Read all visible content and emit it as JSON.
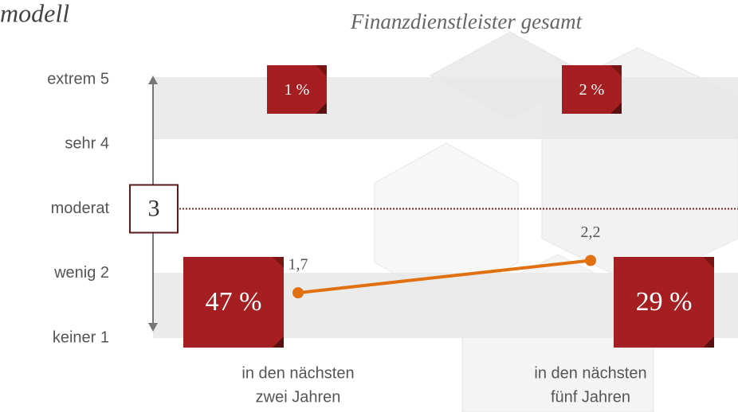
{
  "chart_data": {
    "type": "line",
    "heading": "modell",
    "title": "Finanzdienstleister gesamt",
    "categories": [
      [
        "in den nächsten",
        "zwei Jahren"
      ],
      [
        "in den nächsten",
        "fünf Jahren"
      ]
    ],
    "values": [
      1.7,
      2.2
    ],
    "value_labels": [
      "1,7",
      "2,2"
    ],
    "color": "#e07010",
    "ylim": [
      1,
      5
    ],
    "yticks": [
      {
        "value": 1,
        "label": "keiner 1"
      },
      {
        "value": 2,
        "label": "wenig 2"
      },
      {
        "value": 3,
        "label": "moderat"
      },
      {
        "value": 4,
        "label": "sehr 4"
      },
      {
        "value": 5,
        "label": "extrem 5"
      }
    ],
    "reference_line": 3,
    "box_color": "#a51f22",
    "low_shares": [
      {
        "value": 47,
        "label": "47 %"
      },
      {
        "value": 29,
        "label": "29 %"
      }
    ],
    "high_shares": [
      {
        "value": 1,
        "label": "1 %"
      },
      {
        "value": 2,
        "label": "2 %"
      }
    ]
  }
}
